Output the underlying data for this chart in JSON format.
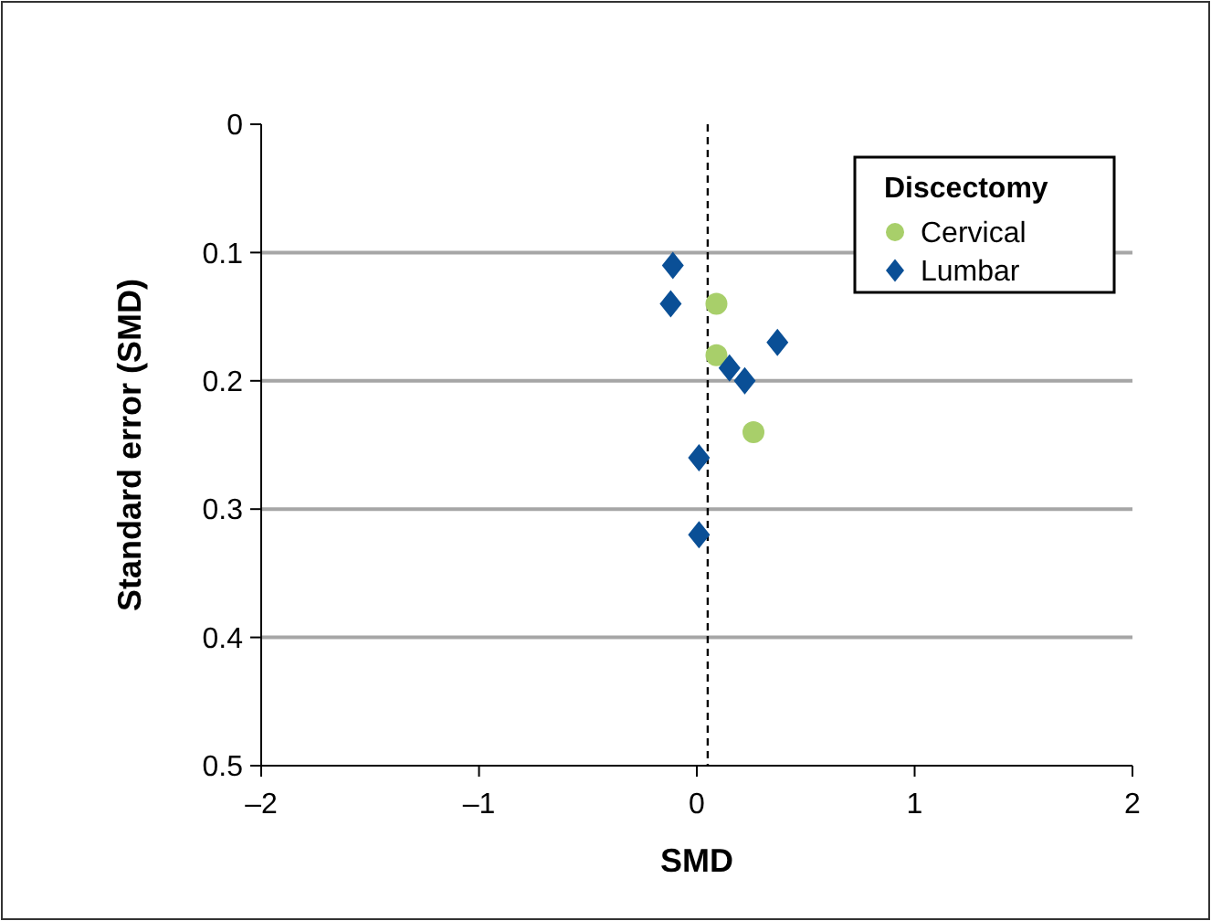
{
  "chart_data": {
    "type": "scatter",
    "xlabel": "SMD",
    "ylabel": "Standard error (SMD)",
    "legend_title": "Discectomy",
    "legend": "top right",
    "grid": "y",
    "xlim": [
      -2,
      2
    ],
    "xticks": [
      {
        "value": -2,
        "label": "–2"
      },
      {
        "value": -1,
        "label": "–1"
      },
      0,
      1,
      2
    ],
    "ylim": [
      0.5,
      0
    ],
    "yticks": [
      0,
      0.1,
      0.2,
      0.3,
      0.4,
      0.5
    ],
    "ref_lines": [
      {
        "axis": "x",
        "value": 0.05,
        "color": "#000000",
        "line_style": "dashed"
      }
    ],
    "series": [
      {
        "name": "Cervical",
        "color": "#a8cf6a",
        "marker": "circle",
        "x": [
          0.09,
          0.09,
          0.26
        ],
        "values": [
          0.14,
          0.18,
          0.24
        ]
      },
      {
        "name": "Lumbar",
        "color": "#0a4f96",
        "marker": "diamond",
        "x": [
          -0.11,
          -0.12,
          0.37,
          0.15,
          0.22,
          0.01,
          0.01
        ],
        "values": [
          0.11,
          0.14,
          0.17,
          0.19,
          0.2,
          0.26,
          0.32
        ]
      }
    ]
  }
}
